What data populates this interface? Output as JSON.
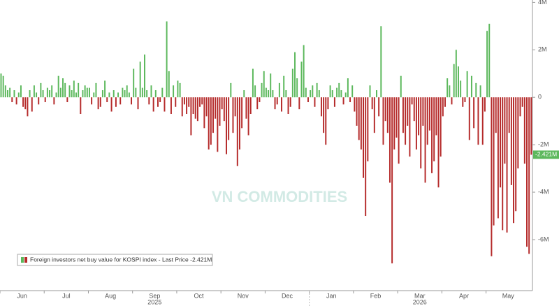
{
  "chart_data": {
    "type": "bar",
    "series": [
      {
        "name": "Foreign investors net buy value for KOSPI index - Last Price -2.421M",
        "pos_color": "#5cb85c",
        "neg_color": "#b52a2a",
        "values": [
          1.0,
          0.9,
          0.5,
          0.3,
          0.4,
          -0.2,
          0.3,
          -0.3,
          0.2,
          0.5,
          -0.4,
          -0.5,
          -0.8,
          0.3,
          -0.6,
          0.5,
          0.2,
          -0.3,
          0.6,
          0.3,
          -0.2,
          0.4,
          0.3,
          0.5,
          -0.3,
          0.2,
          0.9,
          0.4,
          0.8,
          0.6,
          -0.2,
          0.5,
          0.3,
          0.7,
          0.2,
          0.6,
          -0.7,
          0.3,
          0.5,
          0.4,
          0.4,
          -0.3,
          0.2,
          0.6,
          -0.5,
          -0.4,
          0.3,
          0.7,
          -0.2,
          0.2,
          -0.6,
          0.3,
          -0.4,
          0.2,
          -0.3,
          0.4,
          0.3,
          0.5,
          0.2,
          -0.3,
          1.2,
          0.4,
          -0.5,
          1.5,
          0.4,
          1.8,
          0.3,
          -0.3,
          0.5,
          -0.6,
          0.3,
          -0.4,
          -0.2,
          0.4,
          -0.6,
          3.2,
          1.1,
          -0.7,
          0.5,
          -0.4,
          0.7,
          0.6,
          -0.8,
          -0.3,
          -0.7,
          -0.4,
          -1.6,
          -0.7,
          -0.9,
          -1.0,
          -0.4,
          -0.3,
          -1.3,
          -0.8,
          -2.2,
          -2.0,
          -1.5,
          -0.9,
          -2.3,
          -1.2,
          -0.5,
          -1.0,
          -2.4,
          -1.8,
          0.6,
          -1.5,
          -0.8,
          -2.9,
          -2.2,
          -1.3,
          0.3,
          -0.9,
          -1.6,
          -0.7,
          1.2,
          0.5,
          -0.5,
          -0.2,
          0.6,
          1.1,
          0.4,
          0.3,
          1.0,
          0.3,
          -0.5,
          -0.3,
          0.6,
          -0.6,
          0.9,
          0.3,
          -0.7,
          -0.4,
          1.2,
          1.9,
          0.8,
          -0.5,
          1.5,
          2.2,
          0.4,
          -0.2,
          0.3,
          0.5,
          -0.4,
          0.6,
          0.3,
          -0.8,
          -1.5,
          -2.0,
          -0.5,
          0.5,
          0.3,
          -0.4,
          0.4,
          0.6,
          0.3,
          -0.3,
          0.2,
          0.8,
          -0.2,
          0.5,
          -0.6,
          -1.2,
          -1.8,
          -2.2,
          -3.4,
          -5.0,
          -2.7,
          0.5,
          -0.5,
          -1.5,
          0.3,
          -0.8,
          3.0,
          -2.0,
          -1.0,
          -1.5,
          -3.6,
          -7.0,
          -2.2,
          -1.7,
          -2.8,
          0.9,
          -1.5,
          -2.0,
          -1.2,
          -2.5,
          -0.3,
          -1.0,
          -2.2,
          -1.6,
          -3.0,
          -1.2,
          -3.6,
          -2.0,
          -1.4,
          -3.2,
          -2.7,
          -1.6,
          -3.8,
          -2.5,
          -0.8,
          -0.4,
          0.8,
          0.5,
          -0.3,
          1.4,
          2.0,
          1.3,
          0.7,
          -0.4,
          -0.2,
          1.1,
          -1.8,
          0.9,
          -1.3,
          0.6,
          -2.0,
          0.5,
          -2.0,
          -0.6,
          2.8,
          3.1,
          -6.7,
          -5.4,
          -1.5,
          -5.1,
          -3.8,
          -5.6,
          -2.8,
          -5.7,
          -1.5,
          -3.7,
          -5.3,
          -4.8,
          -3.0,
          -0.8,
          -0.4,
          -2.8,
          -6.3,
          -6.6,
          -2.421
        ]
      }
    ],
    "last_price": {
      "value": -2.421,
      "label": "-2.421M"
    },
    "ylim": [
      -8.15,
      4.1
    ],
    "yticks": [
      {
        "value": 4,
        "label": "4M"
      },
      {
        "value": 2,
        "label": "2M"
      },
      0,
      {
        "value": -2,
        "label": "-2M"
      },
      {
        "value": -4,
        "label": "-4M"
      },
      {
        "value": -6,
        "label": "-6M"
      }
    ],
    "months": [
      "Jun",
      "Jul",
      "Aug",
      "Sep",
      "Oct",
      "Nov",
      "Dec",
      "Jan",
      "Feb",
      "Mar",
      "Apr",
      "May"
    ],
    "years": [
      "2025",
      "2026"
    ],
    "watermark": "VN COMMODITIES"
  }
}
